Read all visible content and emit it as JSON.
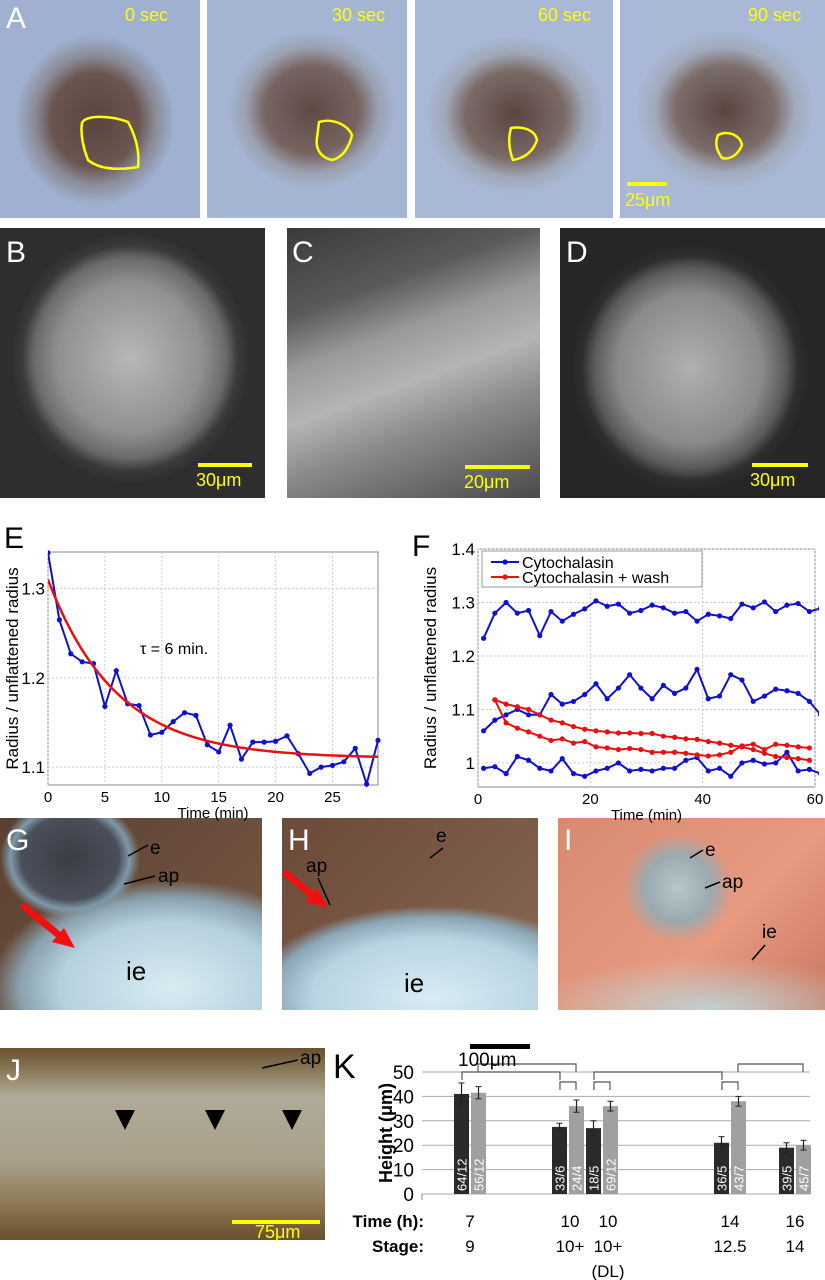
{
  "panels": {
    "A": {
      "label": "A",
      "times": [
        "0 sec",
        "30 sec",
        "60 sec",
        "90 sec"
      ],
      "scale": "25μm"
    },
    "B": {
      "label": "B",
      "scale": "30μm"
    },
    "C": {
      "label": "C",
      "scale": "20μm"
    },
    "D": {
      "label": "D",
      "scale": "30μm"
    },
    "G": {
      "label": "G",
      "e": "e",
      "ap": "ap",
      "ie": "ie"
    },
    "H": {
      "label": "H",
      "e": "e",
      "ap": "ap",
      "ie": "ie",
      "scale": "100μm"
    },
    "I": {
      "label": "I",
      "e": "e",
      "ap": "ap",
      "ie": "ie"
    },
    "J": {
      "label": "J",
      "ap": "ap",
      "scale": "75μm"
    },
    "E": {
      "label": "E"
    },
    "F": {
      "label": "F"
    },
    "K": {
      "label": "K"
    }
  },
  "colors": {
    "blue": "#1010d0",
    "red": "#e81010",
    "yellow": "#ffff00",
    "dark_bar": "#2a2a2a",
    "light_bar": "#a0a0a0"
  },
  "chart_data": [
    {
      "id": "E",
      "type": "line",
      "xlabel": "Time (min)",
      "ylabel": "Radius / unflattened radius",
      "xlim": [
        0,
        29
      ],
      "ylim": [
        1.08,
        1.341
      ],
      "xticks": [
        0,
        5,
        10,
        15,
        20,
        25
      ],
      "yticks": [
        1.1,
        1.2,
        1.3
      ],
      "ytick_labels": [
        "1.1",
        "1.2",
        "1.3"
      ],
      "grid": true,
      "annotation": "τ = 6 min.",
      "series": [
        {
          "name": "data",
          "color": "#1010d0",
          "x": [
            0,
            1,
            2,
            3,
            4,
            5,
            6,
            7,
            8,
            9,
            10,
            11,
            12,
            13,
            14,
            15,
            16,
            17,
            18,
            19,
            20,
            21,
            22,
            23,
            24,
            25,
            26,
            27,
            28,
            29
          ],
          "y": [
            1.34,
            1.265,
            1.227,
            1.218,
            1.216,
            1.168,
            1.208,
            1.171,
            1.169,
            1.136,
            1.139,
            1.151,
            1.161,
            1.158,
            1.125,
            1.117,
            1.147,
            1.109,
            1.128,
            1.128,
            1.129,
            1.135,
            1.115,
            1.093,
            1.1,
            1.102,
            1.106,
            1.121,
            1.081,
            1.13
          ]
        },
        {
          "name": "exponential fit",
          "color": "#e81010",
          "fit": {
            "a": 1.11,
            "b": 0.2,
            "tau": 6
          }
        }
      ]
    },
    {
      "id": "F",
      "type": "line",
      "xlabel": "Time (min)",
      "ylabel": "Radius / unflattened radius",
      "xlim": [
        0,
        60
      ],
      "ylim": [
        0.955,
        1.4
      ],
      "xticks": [
        0,
        20,
        40,
        60
      ],
      "yticks": [
        1,
        1.1,
        1.2,
        1.3,
        1.4
      ],
      "ytick_labels": [
        "1",
        "1.1",
        "1.2",
        "1.3",
        "1.4"
      ],
      "grid": true,
      "legend": {
        "position": "top-left",
        "entries": [
          {
            "label": "Cytochalasin",
            "color": "#1010d0"
          },
          {
            "label": "Cytochalasin + wash",
            "color": "#e81010"
          }
        ]
      },
      "series": [
        {
          "name": "Cytochalasin 1",
          "color": "#1010d0",
          "x0": 1,
          "dx": 2,
          "y": [
            1.233,
            1.28,
            1.3,
            1.28,
            1.285,
            1.238,
            1.283,
            1.265,
            1.278,
            1.288,
            1.303,
            1.293,
            1.297,
            1.28,
            1.285,
            1.295,
            1.29,
            1.28,
            1.283,
            1.265,
            1.278,
            1.275,
            1.27,
            1.297,
            1.29,
            1.301,
            1.283,
            1.295,
            1.298,
            1.283,
            1.289
          ]
        },
        {
          "name": "Cytochalasin 2",
          "color": "#1010d0",
          "x0": 1,
          "dx": 2,
          "y": [
            1.06,
            1.08,
            1.09,
            1.1,
            1.09,
            1.09,
            1.128,
            1.11,
            1.115,
            1.128,
            1.148,
            1.12,
            1.14,
            1.165,
            1.14,
            1.12,
            1.145,
            1.13,
            1.14,
            1.175,
            1.12,
            1.125,
            1.165,
            1.155,
            1.115,
            1.125,
            1.138,
            1.135,
            1.13,
            1.115,
            1.09
          ]
        },
        {
          "name": "Cytochalasin 3",
          "color": "#1010d0",
          "x0": 1,
          "dx": 2,
          "y": [
            0.99,
            0.993,
            0.98,
            1.012,
            1.005,
            0.99,
            0.985,
            1.008,
            0.98,
            0.975,
            0.985,
            0.99,
            1.0,
            0.985,
            0.988,
            0.985,
            0.99,
            0.99,
            1.005,
            1.01,
            0.985,
            0.99,
            0.975,
            1.0,
            1.005,
            0.998,
            1.0,
            1.02,
            0.985,
            0.988,
            0.98
          ]
        },
        {
          "name": "Cytochalasin + wash 1",
          "color": "#e81010",
          "x0": 3,
          "dx": 2,
          "y": [
            1.118,
            1.11,
            1.105,
            1.1,
            1.09,
            1.08,
            1.075,
            1.068,
            1.063,
            1.06,
            1.058,
            1.056,
            1.056,
            1.055,
            1.055,
            1.05,
            1.048,
            1.045,
            1.044,
            1.04,
            1.037,
            1.033,
            1.03,
            1.025,
            1.018,
            1.012,
            1.01,
            1.008,
            1.005
          ]
        },
        {
          "name": "Cytochalasin + wash 2",
          "color": "#e81010",
          "x0": 3,
          "dx": 2,
          "y": [
            1.118,
            1.075,
            1.065,
            1.058,
            1.05,
            1.042,
            1.045,
            1.037,
            1.04,
            1.03,
            1.028,
            1.025,
            1.027,
            1.025,
            1.02,
            1.02,
            1.02,
            1.018,
            1.015,
            1.013,
            1.015,
            1.02,
            1.032,
            1.035,
            1.025,
            1.035,
            1.033,
            1.03,
            1.028
          ]
        }
      ]
    },
    {
      "id": "K",
      "type": "bar",
      "ylabel": "Height (μm)",
      "ylim": [
        0,
        50
      ],
      "yticks": [
        0,
        10,
        20,
        30,
        40,
        50
      ],
      "ytick_labels": [
        "0",
        "10",
        "20",
        "30",
        "40",
        "50"
      ],
      "row_labels": {
        "time": "Time (h):",
        "stage": "Stage:"
      },
      "groups": [
        {
          "time": "7",
          "stage": "9",
          "note": "",
          "bars": [
            {
              "value": 41,
              "err": 4.5,
              "n": "64/12"
            },
            {
              "value": 41.5,
              "err": 2.5,
              "n": "56/12"
            }
          ]
        },
        {
          "time": "10",
          "stage": "10+",
          "note": "",
          "bars": [
            {
              "value": 27.5,
              "err": 1.5,
              "n": "33/6"
            },
            {
              "value": 36,
              "err": 2.5,
              "n": "24/4"
            }
          ]
        },
        {
          "time": "10",
          "stage": "10+",
          "note": "(DL)",
          "bars": [
            {
              "value": 27,
              "err": 3,
              "n": "18/5"
            },
            {
              "value": 36,
              "err": 2,
              "n": "69/12"
            }
          ]
        },
        {
          "time": "14",
          "stage": "12.5",
          "note": "",
          "bars": [
            {
              "value": 21,
              "err": 2.5,
              "n": "36/5"
            },
            {
              "value": 38,
              "err": 2,
              "n": "43/7"
            }
          ]
        },
        {
          "time": "16",
          "stage": "14",
          "note": "",
          "bars": [
            {
              "value": 19,
              "err": 2,
              "n": "39/5"
            },
            {
              "value": 20,
              "err": 2,
              "n": "45/7"
            }
          ]
        }
      ]
    }
  ]
}
